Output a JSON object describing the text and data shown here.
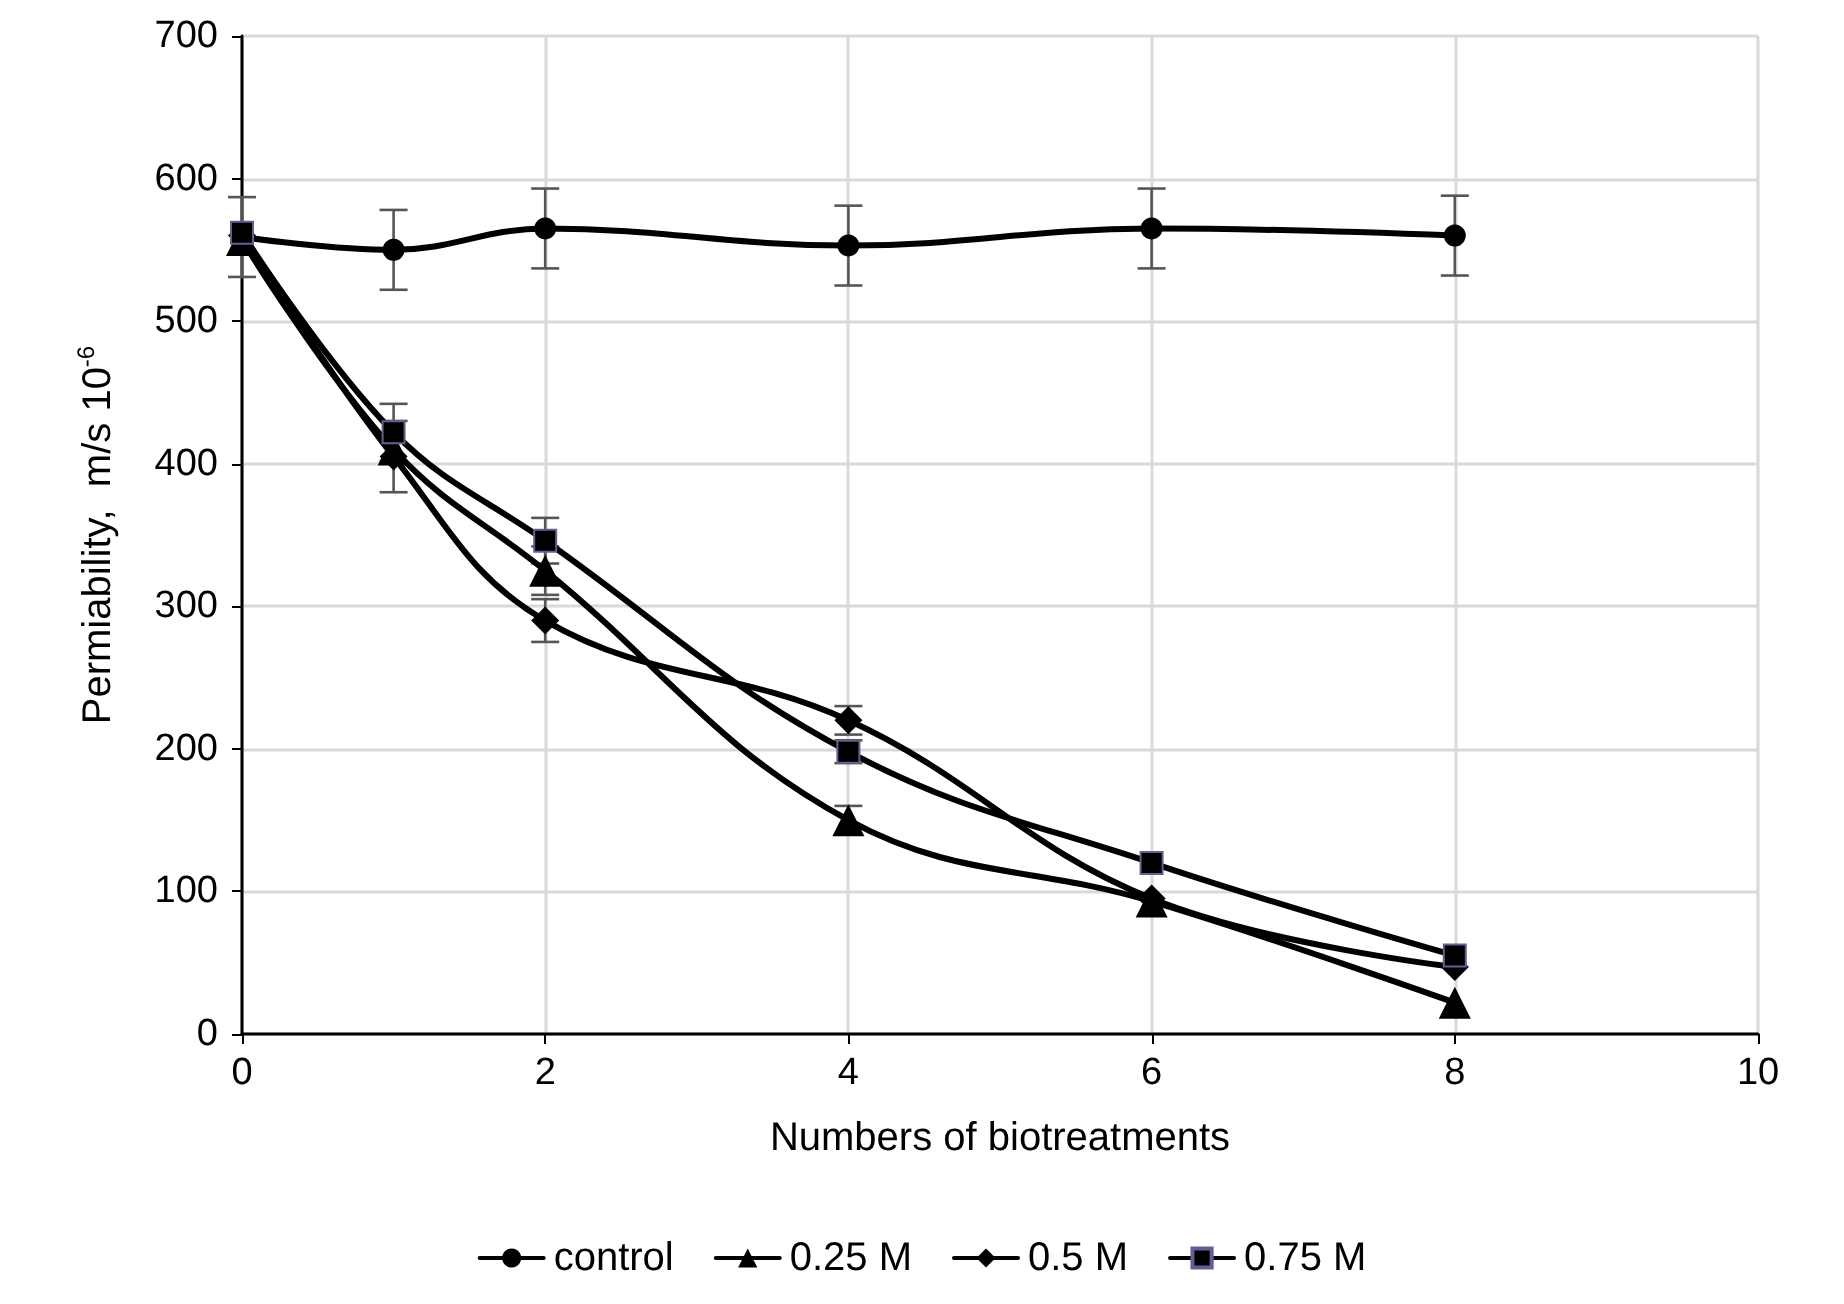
{
  "chart_data": {
    "type": "line",
    "xlabel": "Numbers of biotreatments",
    "ylabel": "Permiability,  m/s 10$^{-6}$",
    "x": [
      0,
      1,
      2,
      4,
      6,
      8
    ],
    "xlim": [
      0,
      10
    ],
    "xticks": [
      0,
      2,
      4,
      6,
      8,
      10
    ],
    "ylim": [
      0,
      700
    ],
    "yticks": [
      0,
      100,
      200,
      300,
      400,
      500,
      600,
      700
    ],
    "grid": true,
    "legend": "bottom",
    "series": [
      {
        "name": "control",
        "color": "#000000",
        "marker": "circle",
        "values": [
          559,
          550,
          565,
          553,
          565,
          560
        ],
        "errors": [
          28,
          28,
          28,
          28,
          28,
          28
        ]
      },
      {
        "name": "0.25 M",
        "color": "#000000",
        "marker": "triangle",
        "values": [
          557,
          410,
          325,
          150,
          93,
          22
        ],
        "errors": [
          null,
          null,
          17,
          10,
          null,
          null
        ]
      },
      {
        "name": "0.5 M",
        "color": "#000000",
        "marker": "diamond",
        "values": [
          560,
          405,
          290,
          220,
          95,
          47
        ],
        "errors": [
          null,
          25,
          15,
          10,
          null,
          null
        ]
      },
      {
        "name": "0.75 M",
        "color": "#000000",
        "marker": "square",
        "values": [
          562,
          422,
          346,
          198,
          120,
          55
        ],
        "errors": [
          null,
          20,
          16,
          8,
          null,
          null
        ]
      }
    ]
  }
}
